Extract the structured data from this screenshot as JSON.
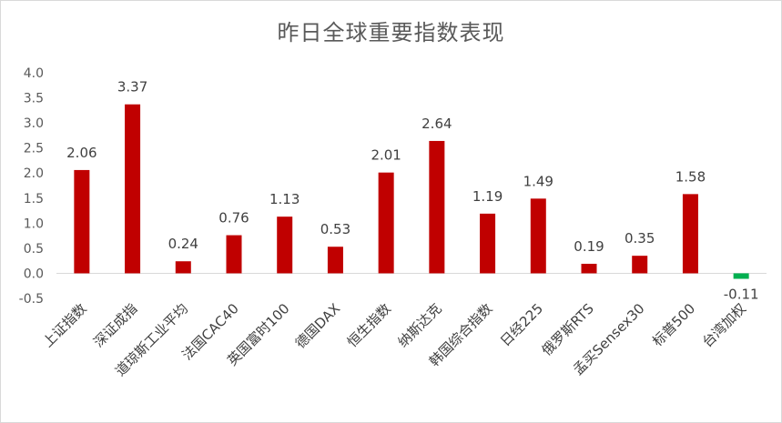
{
  "chart_data": {
    "type": "bar",
    "title": "昨日全球重要指数表现",
    "xlabel": "",
    "ylabel": "",
    "ylim": [
      -0.5,
      4.0
    ],
    "yticks": [
      "4.0",
      "3.5",
      "3.0",
      "2.5",
      "2.0",
      "1.5",
      "1.0",
      "0.5",
      "0.0",
      "-0.5"
    ],
    "grid": false,
    "legend": "none",
    "categories": [
      "上证指数",
      "深证成指",
      "道琼斯工业平均",
      "法国CAC40",
      "英国富时100",
      "德国DAX",
      "恒生指数",
      "纳斯达克",
      "韩国综合指数",
      "日经225",
      "俄罗斯RTS",
      "孟买Sensex30",
      "标普500",
      "台湾加权"
    ],
    "values": [
      2.06,
      3.37,
      0.24,
      0.76,
      1.13,
      0.53,
      2.01,
      2.64,
      1.19,
      1.49,
      0.19,
      0.35,
      1.58,
      -0.11
    ],
    "data_labels": [
      "2.06",
      "3.37",
      "0.24",
      "0.76",
      "1.13",
      "0.53",
      "2.01",
      "2.64",
      "1.19",
      "1.49",
      "0.19",
      "0.35",
      "1.58",
      "-0.11"
    ],
    "colors": {
      "positive": "#c00000",
      "negative": "#00b050",
      "axis": "#d9d9d9",
      "text": "#595959"
    }
  }
}
